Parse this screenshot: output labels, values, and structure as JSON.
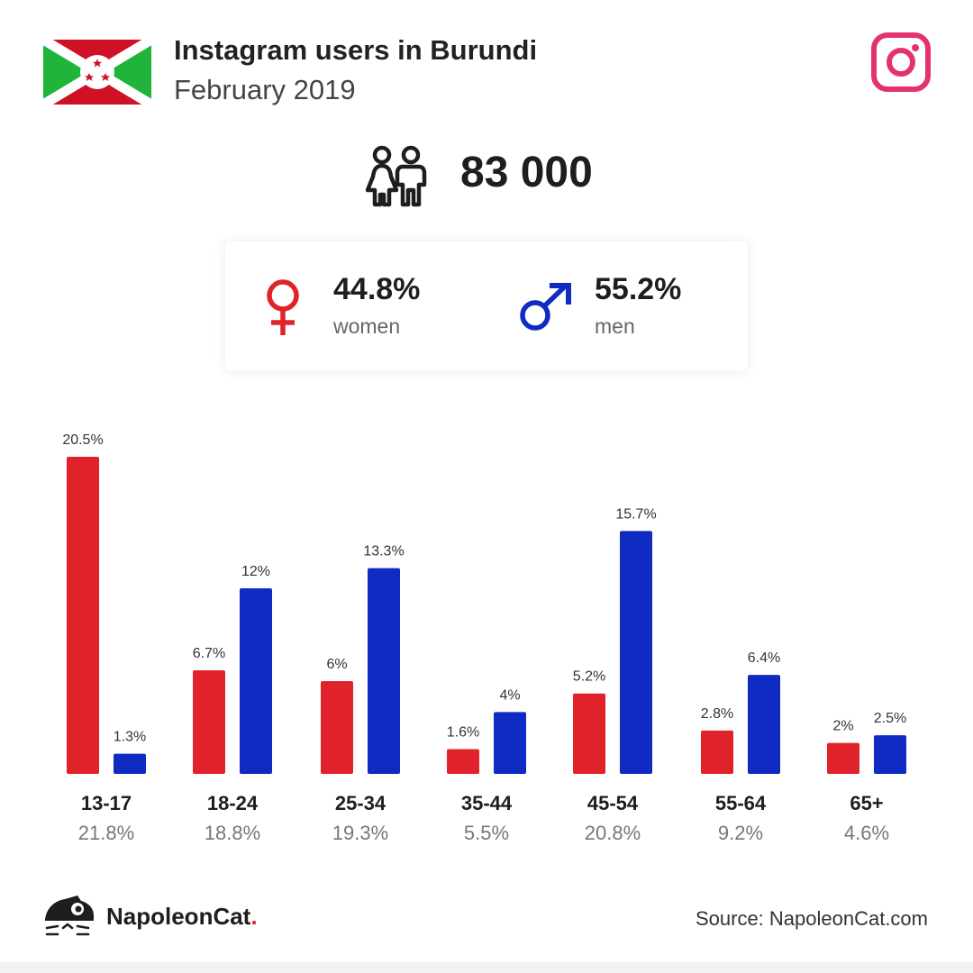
{
  "header": {
    "title": "Instagram users in Burundi",
    "subtitle": "February 2019"
  },
  "icons": {
    "flag": "burundi-flag-icon",
    "instagram": "instagram-icon",
    "people": "people-icon",
    "female": "female-symbol-icon",
    "male": "male-symbol-icon",
    "logo": "napoleoncat-logo-icon"
  },
  "summary": {
    "total": "83 000",
    "women": {
      "percent": "44.8%",
      "label": "women"
    },
    "men": {
      "percent": "55.2%",
      "label": "men"
    }
  },
  "chart_data": {
    "type": "bar",
    "categories": [
      "13-17",
      "18-24",
      "25-34",
      "35-44",
      "45-54",
      "55-64",
      "65+"
    ],
    "category_totals": [
      "21.8%",
      "18.8%",
      "19.3%",
      "5.5%",
      "20.8%",
      "9.2%",
      "4.6%"
    ],
    "series": [
      {
        "values": [
          20.5,
          6.7,
          6,
          1.6,
          5.2,
          2.8,
          2
        ],
        "labels": [
          "20.5%",
          "6.7%",
          "6%",
          "1.6%",
          "5.2%",
          "2.8%",
          "2%"
        ],
        "color": "#e0232a"
      },
      {
        "values": [
          1.3,
          12,
          13.3,
          4,
          15.7,
          6.4,
          2.5
        ],
        "labels": [
          "1.3%",
          "12%",
          "13.3%",
          "4%",
          "15.7%",
          "6.4%",
          "2.5%"
        ],
        "color": "#0f2bc2"
      }
    ],
    "ylim": [
      0,
      20.5
    ]
  },
  "footer": {
    "brand": "NapoleonCat",
    "brand_dot": ".",
    "source": "Source: NapoleonCat.com"
  },
  "colors": {
    "women": "#e0232a",
    "men": "#0f2bc2",
    "instagram": "#e4326d",
    "flag_green": "#1eb53a",
    "flag_red": "#ce1126"
  }
}
